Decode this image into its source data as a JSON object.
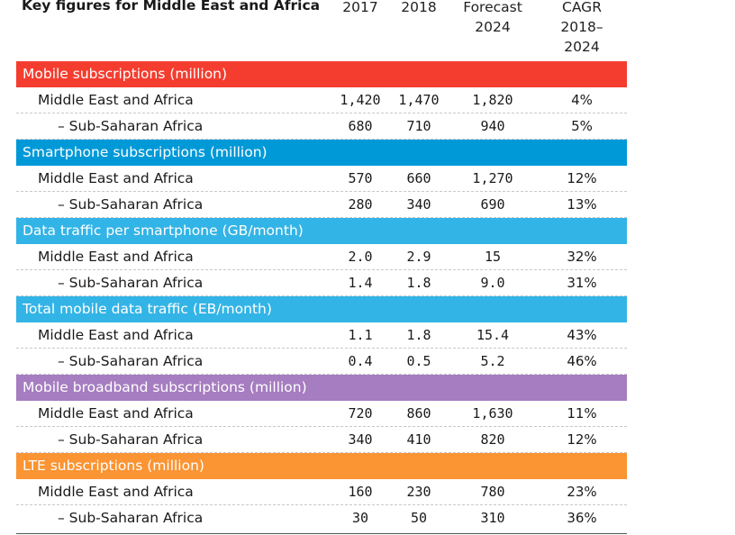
{
  "chart_data": {
    "type": "table",
    "title": "Key figures for Middle East and Africa",
    "columns": {
      "y2017": "2017",
      "y2018": "2018",
      "forecast": [
        "Forecast",
        "2024"
      ],
      "cagr": [
        "CAGR",
        "2018–",
        "2024"
      ]
    },
    "sections": [
      {
        "title": "Mobile subscriptions (million)",
        "color": "#f43d2f",
        "rows": [
          {
            "label": "Middle East and Africa",
            "y2017": "1,420",
            "y2018": "1,470",
            "forecast": "1,820",
            "cagr": "4%"
          },
          {
            "label": "– Sub-Saharan Africa",
            "y2017": "680",
            "y2018": "710",
            "forecast": "940",
            "cagr": "5%"
          }
        ]
      },
      {
        "title": "Smartphone subscriptions (million)",
        "color": "#0099d8",
        "rows": [
          {
            "label": "Middle East and Africa",
            "y2017": "570",
            "y2018": "660",
            "forecast": "1,270",
            "cagr": "12%"
          },
          {
            "label": "– Sub-Saharan Africa",
            "y2017": "280",
            "y2018": "340",
            "forecast": "690",
            "cagr": "13%"
          }
        ]
      },
      {
        "title": "Data traffic per smartphone (GB/month)",
        "color": "#33b4e6",
        "rows": [
          {
            "label": "Middle East and Africa",
            "y2017": "2.0",
            "y2018": "2.9",
            "forecast": "15",
            "cagr": "32%"
          },
          {
            "label": "– Sub-Saharan Africa",
            "y2017": "1.4",
            "y2018": "1.8",
            "forecast": "9.0",
            "cagr": "31%"
          }
        ]
      },
      {
        "title": "Total mobile data traffic (EB/month)",
        "color": "#33b4e6",
        "rows": [
          {
            "label": "Middle East and Africa",
            "y2017": "1.1",
            "y2018": "1.8",
            "forecast": "15.4",
            "cagr": "43%"
          },
          {
            "label": "– Sub-Saharan Africa",
            "y2017": "0.4",
            "y2018": "0.5",
            "forecast": "5.2",
            "cagr": "46%"
          }
        ]
      },
      {
        "title": "Mobile broadband subscriptions (million)",
        "color": "#a57dc0",
        "rows": [
          {
            "label": "Middle East and Africa",
            "y2017": "720",
            "y2018": "860",
            "forecast": "1,630",
            "cagr": "11%"
          },
          {
            "label": "– Sub-Saharan Africa",
            "y2017": "340",
            "y2018": "410",
            "forecast": "820",
            "cagr": "12%"
          }
        ]
      },
      {
        "title": "LTE subscriptions (million)",
        "color": "#fb9432",
        "rows": [
          {
            "label": "Middle East and Africa",
            "y2017": "160",
            "y2018": "230",
            "forecast": "780",
            "cagr": "23%"
          },
          {
            "label": "– Sub-Saharan Africa",
            "y2017": "30",
            "y2018": "50",
            "forecast": "310",
            "cagr": "36%"
          }
        ]
      }
    ]
  }
}
